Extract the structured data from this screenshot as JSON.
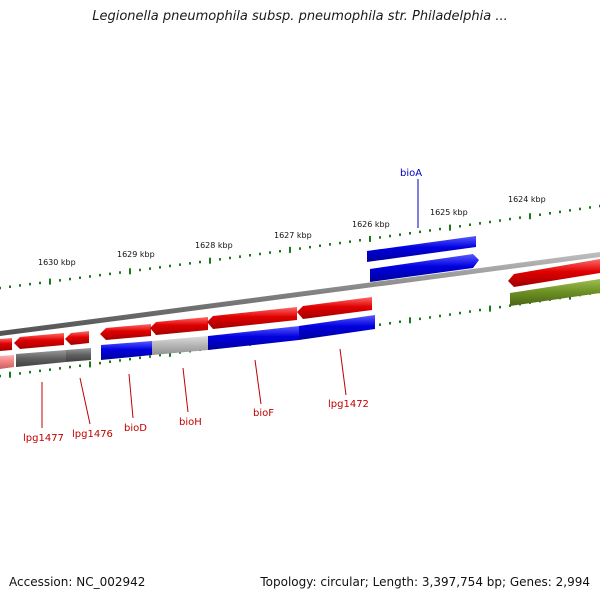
{
  "title": "Legionella pneumophila subsp. pneumophila str. Philadelphia ...",
  "footer": {
    "accession": "Accession: NC_002942",
    "summary": "Topology: circular; Length: 3,397,754 bp; Genes: 2,994"
  },
  "colors": {
    "forward_gene": "#e00000",
    "reverse_gene": "#0000e0",
    "forward_label": "#c00000",
    "reverse_label": "#0000c0",
    "backbone": "#808080",
    "tick": "#1a7a1a",
    "olive": "#6b8e23",
    "gray_track": "#666666",
    "light_gray_track": "#b0b0b0",
    "pink_track": "#f08080"
  },
  "kbp_labels": [
    "1630 kbp",
    "1629 kbp",
    "1628 kbp",
    "1627 kbp",
    "1626 kbp",
    "1625 kbp",
    "1624 kbp"
  ],
  "gene_labels_bottom": [
    "lpg1477",
    "lpg1476",
    "bioD",
    "bioH",
    "bioF",
    "lpg1472"
  ],
  "gene_labels_top": [
    "bioA"
  ]
}
